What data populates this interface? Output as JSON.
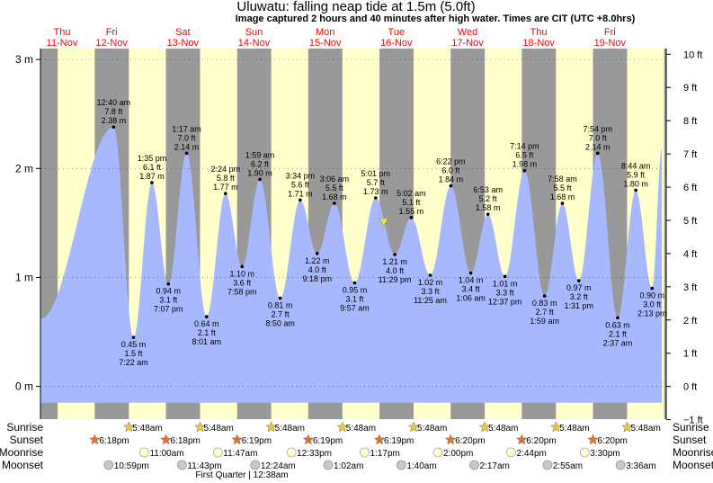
{
  "chart_data": {
    "type": "area",
    "title": "Uluwatu: falling  neap tide at 1.5m (5.0ft)",
    "subtitle": "Image captured 2 hours and 40 minutes after high water. Times are CIT (UTC +8.0hrs)",
    "days": [
      {
        "dow": "Thu",
        "date": "11-Nov"
      },
      {
        "dow": "Fri",
        "date": "12-Nov"
      },
      {
        "dow": "Sat",
        "date": "13-Nov"
      },
      {
        "dow": "Sun",
        "date": "14-Nov"
      },
      {
        "dow": "Mon",
        "date": "15-Nov"
      },
      {
        "dow": "Tue",
        "date": "16-Nov"
      },
      {
        "dow": "Wed",
        "date": "17-Nov"
      },
      {
        "dow": "Thu",
        "date": "18-Nov"
      },
      {
        "dow": "Fri",
        "date": "19-Nov"
      }
    ],
    "x_range_hours": [
      0,
      211
    ],
    "ylim_m": [
      -0.3,
      3.1
    ],
    "left_axis": {
      "unit": "m",
      "ticks": [
        "0 m",
        "1 m",
        "2 m",
        "3 m"
      ],
      "values": [
        0,
        1,
        2,
        3
      ]
    },
    "right_axis": {
      "unit": "ft",
      "ticks": [
        "−1 ft",
        "0 ft",
        "1 ft",
        "2 ft",
        "3 ft",
        "4 ft",
        "5 ft",
        "6 ft",
        "7 ft",
        "8 ft",
        "9 ft",
        "10 ft"
      ],
      "values": [
        -1,
        0,
        1,
        2,
        3,
        4,
        5,
        6,
        7,
        8,
        9,
        10
      ]
    },
    "tides": [
      {
        "t": 24.67,
        "m": 2.38,
        "label": "12:40 am",
        "ft": "7.8 ft",
        "mt": "2.38 m",
        "kind": "high"
      },
      {
        "t": 31.37,
        "m": 0.45,
        "label": "7:22 am",
        "ft": "1.5 ft",
        "mt": "0.45 m",
        "kind": "low"
      },
      {
        "t": 37.58,
        "m": 1.87,
        "label": "1:35 pm",
        "ft": "6.1 ft",
        "mt": "1.87 m",
        "kind": "high"
      },
      {
        "t": 43.12,
        "m": 0.94,
        "label": "7:07 pm",
        "ft": "3.1 ft",
        "mt": "0.94 m",
        "kind": "low"
      },
      {
        "t": 49.28,
        "m": 2.14,
        "label": "1:17 am",
        "ft": "7.0 ft",
        "mt": "2.14 m",
        "kind": "high"
      },
      {
        "t": 56.02,
        "m": 0.64,
        "label": "8:01 am",
        "ft": "2.1 ft",
        "mt": "0.64 m",
        "kind": "low"
      },
      {
        "t": 62.4,
        "m": 1.77,
        "label": "2:24 pm",
        "ft": "5.8 ft",
        "mt": "1.77 m",
        "kind": "high"
      },
      {
        "t": 67.97,
        "m": 1.1,
        "label": "7:58 pm",
        "ft": "3.6 ft",
        "mt": "1.10 m",
        "kind": "low"
      },
      {
        "t": 73.98,
        "m": 1.9,
        "label": "1:59 am",
        "ft": "6.2 ft",
        "mt": "1.90 m",
        "kind": "high"
      },
      {
        "t": 80.83,
        "m": 0.81,
        "label": "8:50 am",
        "ft": "2.7 ft",
        "mt": "0.81 m",
        "kind": "low"
      },
      {
        "t": 87.57,
        "m": 1.71,
        "label": "3:34 pm",
        "ft": "5.6 ft",
        "mt": "1.71 m",
        "kind": "high"
      },
      {
        "t": 93.3,
        "m": 1.22,
        "label": "9:18 pm",
        "ft": "4.0 ft",
        "mt": "1.22 m",
        "kind": "low"
      },
      {
        "t": 99.1,
        "m": 1.68,
        "label": "3:06 am",
        "ft": "5.5 ft",
        "mt": "1.68 m",
        "kind": "high"
      },
      {
        "t": 105.95,
        "m": 0.95,
        "label": "9:57 am",
        "ft": "3.1 ft",
        "mt": "0.95 m",
        "kind": "low"
      },
      {
        "t": 113.02,
        "m": 1.73,
        "label": "5:01 pm",
        "ft": "5.7 ft",
        "mt": "1.73 m",
        "kind": "high"
      },
      {
        "t": 119.48,
        "m": 1.21,
        "label": "11:29 pm",
        "ft": "4.0 ft",
        "mt": "1.21 m",
        "kind": "low"
      },
      {
        "t": 125.03,
        "m": 1.55,
        "label": "5:02 am",
        "ft": "5.1 ft",
        "mt": "1.55 m",
        "kind": "high"
      },
      {
        "t": 131.42,
        "m": 1.02,
        "label": "11:25 am",
        "ft": "3.3 ft",
        "mt": "1.02 m",
        "kind": "low"
      },
      {
        "t": 138.37,
        "m": 1.84,
        "label": "6:22 pm",
        "ft": "6.0 ft",
        "mt": "1.84 m",
        "kind": "high"
      },
      {
        "t": 145.1,
        "m": 1.04,
        "label": "1:06 am",
        "ft": "3.4 ft",
        "mt": "1.04 m",
        "kind": "low"
      },
      {
        "t": 150.88,
        "m": 1.58,
        "label": "6:53 am",
        "ft": "5.2 ft",
        "mt": "1.58 m",
        "kind": "high"
      },
      {
        "t": 156.62,
        "m": 1.01,
        "label": "12:37 pm",
        "ft": "3.3 ft",
        "mt": "1.01 m",
        "kind": "low"
      },
      {
        "t": 163.23,
        "m": 1.98,
        "label": "7:14 pm",
        "ft": "6.5 ft",
        "mt": "1.98 m",
        "kind": "high"
      },
      {
        "t": 169.98,
        "m": 0.83,
        "label": "1:59 am",
        "ft": "2.7 ft",
        "mt": "0.83 m",
        "kind": "low"
      },
      {
        "t": 175.97,
        "m": 1.68,
        "label": "7:58 am",
        "ft": "5.5 ft",
        "mt": "1.68 m",
        "kind": "high"
      },
      {
        "t": 181.52,
        "m": 0.97,
        "label": "1:31 pm",
        "ft": "3.2 ft",
        "mt": "0.97 m",
        "kind": "low"
      },
      {
        "t": 187.9,
        "m": 2.14,
        "label": "7:54 pm",
        "ft": "7.0 ft",
        "mt": "2.14 m",
        "kind": "high"
      },
      {
        "t": 194.62,
        "m": 0.63,
        "label": "2:37 am",
        "ft": "2.1 ft",
        "mt": "0.63 m",
        "kind": "low"
      },
      {
        "t": 200.73,
        "m": 1.8,
        "label": "8:44 am",
        "ft": "5.9 ft",
        "mt": "1.80 m",
        "kind": "high"
      },
      {
        "t": 206.22,
        "m": 0.9,
        "label": "2:13 pm",
        "ft": "3.0 ft",
        "mt": "0.90 m",
        "kind": "low"
      }
    ],
    "now_hours": 115.7,
    "sunrise": {
      "label": "Sunrise",
      "time": "5:48am",
      "color": "#e8c84a"
    },
    "sunset": {
      "label": "Sunset",
      "color": "#e07040",
      "times": [
        "6:18pm",
        "6:18pm",
        "6:19pm",
        "6:19pm",
        "6:19pm",
        "6:20pm",
        "6:20pm",
        "6:20pm"
      ]
    },
    "moonrise": {
      "label": "Moonrise",
      "times": [
        "11:00am",
        "11:47am",
        "12:33pm",
        "1:17pm",
        "2:00pm",
        "2:44pm",
        "3:30pm"
      ]
    },
    "moonset": {
      "label": "Moonset",
      "times": [
        "10:59pm",
        "11:43pm",
        "12:24am",
        "1:02am",
        "1:40am",
        "2:17am",
        "2:55am",
        "3:36am"
      ]
    },
    "phase_note": "First Quarter | 12:38am",
    "colors": {
      "tide": "#a8b8ff",
      "day": "#ffffcc",
      "night": "#999999",
      "date": "#ff0000",
      "text": "#000000",
      "now_marker": "#e8e040"
    }
  }
}
